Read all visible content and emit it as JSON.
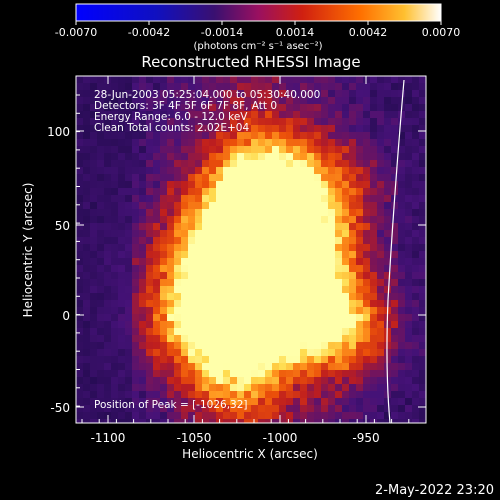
{
  "colorbar": {
    "ticks": [
      "-0.0070",
      "-0.0042",
      "-0.0014",
      "0.0014",
      "0.0042",
      "0.0070"
    ],
    "unit_label": "(photons cm⁻² s⁻¹ asec⁻²)"
  },
  "plot": {
    "title": "Reconstructed RHESSI Image",
    "xlabel": "Heliocentric X (arcsec)",
    "ylabel": "Heliocentric Y (arcsec)",
    "xticks": [
      "-1100",
      "-1050",
      "-1000",
      "-950"
    ],
    "yticks": [
      "100",
      "50",
      "0",
      "-50"
    ],
    "annotations": [
      "28-Jun-2003 05:25:04.000 to 05:30:40.000",
      "Detectors: 3F 4F 5F 6F 7F 8F, Att 0",
      "Energy Range: 6.0 - 12.0 keV",
      "Clean    Total counts: 2.02E+04"
    ],
    "peak": "Position of Peak = [-1026,32]"
  },
  "footer": {
    "timestamp": "2-May-2022 23:20"
  },
  "colors": {
    "background": "#000000",
    "map_low": "#3a1070",
    "map_mid": "#c02010",
    "map_high": "#ffff80"
  }
}
